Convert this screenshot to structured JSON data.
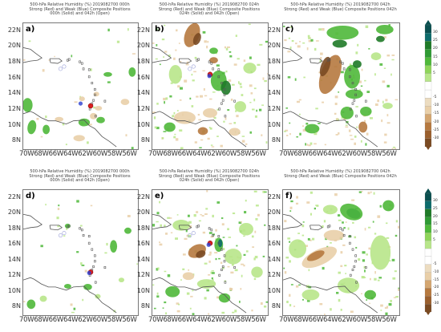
{
  "panels": [
    {
      "id": "a",
      "title": [
        "500-hPa Relative Humidity (%) 2019082700 000h",
        "Strong (Red) and Weak (Blue) Composite Positions",
        "000h (Solid) and 042h (Open)"
      ],
      "strong_pos": [
        -61.6,
        12.5
      ],
      "weak_pos": [
        -63.0,
        12.8
      ]
    },
    {
      "id": "b",
      "title": [
        "500-hPa Relative Humidity (%) 2019082700 024h",
        "Strong (Red) and Weak (Blue) Composite Positions",
        "024h (Solid) and 042h (Open)"
      ],
      "strong_pos": [
        -63.0,
        16.5
      ],
      "weak_pos": [
        -63.1,
        16.3
      ]
    },
    {
      "id": "c",
      "title": [
        "500-hPa Relative Humidity (%) 2019082700 042h",
        "Strong (Red) and Weak (Blue) Composite Positions 042h"
      ],
      "strong_pos": null,
      "weak_pos": null
    },
    {
      "id": "d",
      "title": [
        "500-hPa Relative Humidity (%) 2019082700 000h",
        "Strong (Red) and Weak (Blue) Composite Positions",
        "000h (Solid) and 042h (Open)"
      ],
      "strong_pos": [
        -61.6,
        12.5
      ],
      "weak_pos": [
        -61.8,
        12.4
      ]
    },
    {
      "id": "e",
      "title": [
        "500-hPa Relative Humidity (%) 2019082700 024h",
        "Strong (Red) and Weak (Blue) Composite Positions",
        "024h (Solid) and 042h (Open)"
      ],
      "strong_pos": [
        -63.0,
        16.2
      ],
      "weak_pos": [
        -63.2,
        16.0
      ]
    },
    {
      "id": "f",
      "title": [
        "500-hPa Relative Humidity (%) 2019082700 042h",
        "Strong (Red) and Weak (Blue) Composite Positions 042h"
      ],
      "strong_pos": null,
      "weak_pos": null
    }
  ],
  "lat_ticks": [
    "22N",
    "20N",
    "18N",
    "16N",
    "14N",
    "12N",
    "10N",
    "8N"
  ],
  "lon_ticks_text": "70W68W66W64W62W60W58W56W",
  "colorbar_levels": [
    "30",
    "25",
    "20",
    "15",
    "10",
    "5",
    "-5",
    "-10",
    "-15",
    "-20",
    "-25",
    "-30"
  ],
  "colors": {
    "green_dark": "#1f7a28",
    "green": "#4fb83a",
    "green_light": "#b8e68a",
    "brown_light": "#e9cfa8",
    "brown": "#b6793f",
    "brown_dark": "#7a4a22",
    "teal_dark": "#0d6b6b"
  },
  "chart_data": {
    "type": "heatmap",
    "variable": "500-hPa Relative Humidity (%)",
    "init_time": "2019082700",
    "panels": [
      "a",
      "b",
      "c",
      "d",
      "e",
      "f"
    ],
    "lat_range": [
      7,
      23
    ],
    "lon_range": [
      -71,
      -55
    ],
    "colorbar": {
      "top": 30,
      "bottom": -30
    }
  }
}
